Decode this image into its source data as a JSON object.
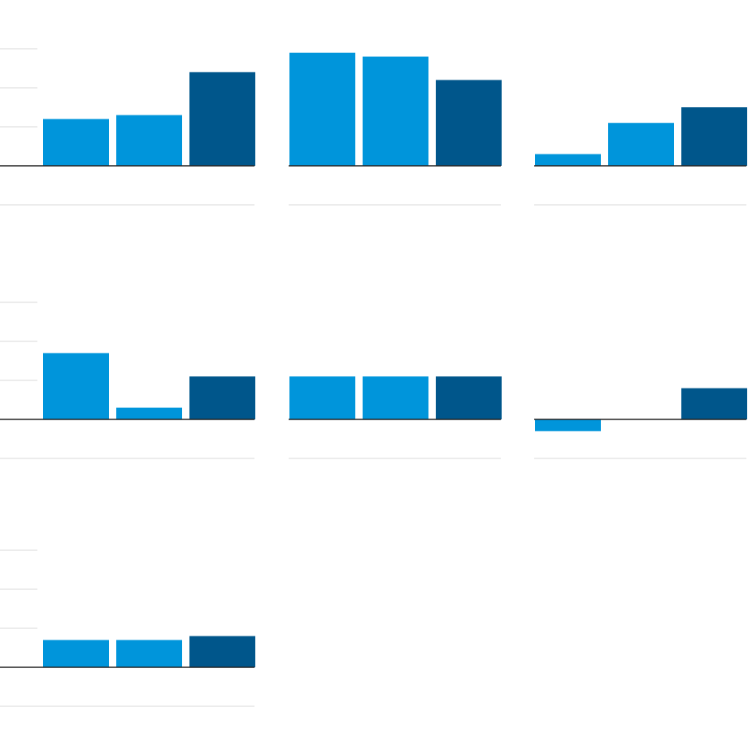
{
  "colors": {
    "light_bar": "#0095db",
    "dark_bar": "#00568b",
    "gridline": "#d9d9d9",
    "baseline": "#222222"
  },
  "chart_data": [
    {
      "type": "bar",
      "categories": [
        "",
        "",
        ""
      ],
      "values": [
        1.2,
        1.3,
        2.4
      ],
      "ylim": [
        -1,
        3
      ],
      "grid": true
    },
    {
      "type": "bar",
      "categories": [
        "",
        "",
        ""
      ],
      "values": [
        2.9,
        2.8,
        2.2
      ],
      "ylim": [
        -1,
        3
      ],
      "grid": true
    },
    {
      "type": "bar",
      "categories": [
        "",
        "",
        ""
      ],
      "values": [
        0.3,
        1.1,
        1.5
      ],
      "ylim": [
        -1,
        3
      ],
      "grid": true
    },
    {
      "type": "bar",
      "categories": [
        "",
        "",
        ""
      ],
      "values": [
        1.7,
        0.3,
        1.1
      ],
      "ylim": [
        -1,
        3
      ],
      "grid": true
    },
    {
      "type": "bar",
      "categories": [
        "",
        "",
        ""
      ],
      "values": [
        1.1,
        1.1,
        1.1
      ],
      "ylim": [
        -1,
        3
      ],
      "grid": true
    },
    {
      "type": "bar",
      "categories": [
        "",
        "",
        ""
      ],
      "values": [
        -0.3,
        0.0,
        0.8
      ],
      "ylim": [
        -1,
        3
      ],
      "grid": true
    },
    {
      "type": "bar",
      "categories": [
        "",
        "",
        ""
      ],
      "values": [
        0.7,
        0.7,
        0.8
      ],
      "ylim": [
        -1,
        3
      ],
      "grid": true
    }
  ]
}
